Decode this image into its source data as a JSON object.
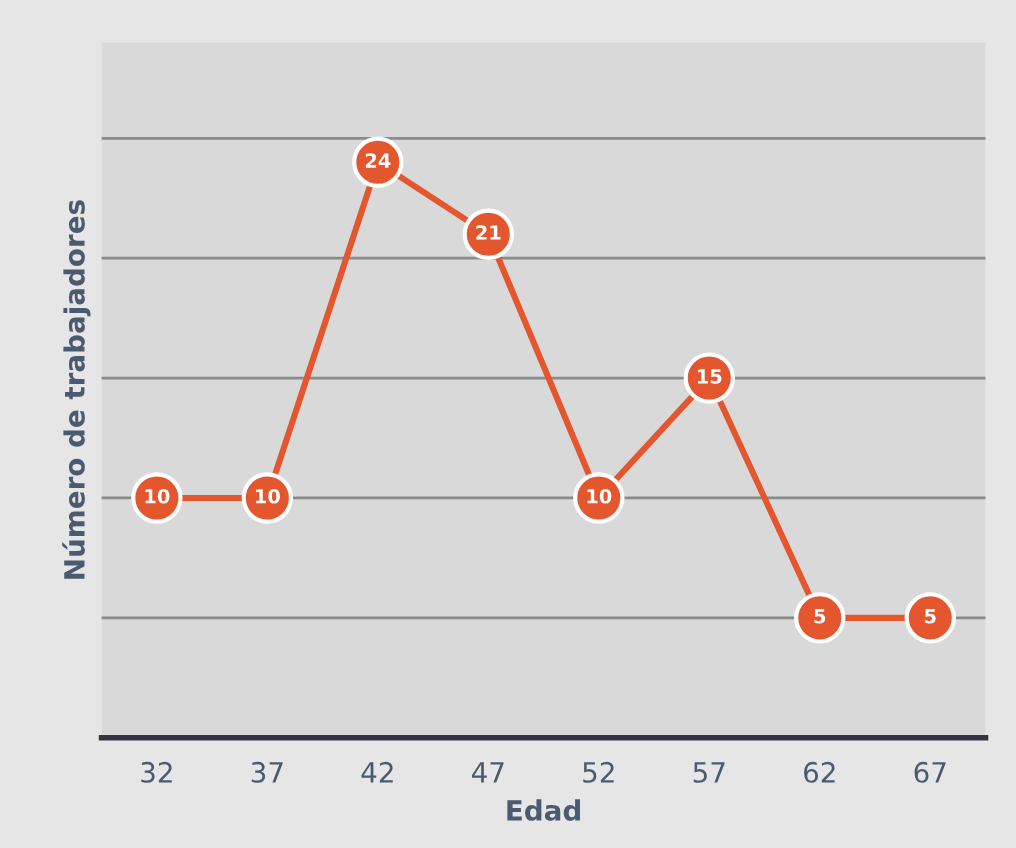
{
  "chart_data": {
    "type": "line",
    "xlabel": "Edad",
    "ylabel": "Número de trabajadores",
    "categories": [
      "32",
      "37",
      "42",
      "47",
      "52",
      "57",
      "62",
      "67"
    ],
    "series": [
      {
        "color": "#e4572e",
        "values": [
          10,
          10,
          24,
          21,
          10,
          15,
          5,
          5
        ]
      }
    ],
    "ylim": [
      0,
      29
    ],
    "yticks": [
      {
        "value": 5,
        "label": null
      },
      {
        "value": 10,
        "label": null
      },
      {
        "value": 15,
        "label": null
      },
      {
        "value": 20,
        "label": null
      },
      {
        "value": 25,
        "label": null
      }
    ],
    "tick_labels": "x",
    "grid": "y",
    "marker": "circle",
    "line_style": "solid",
    "data_labels": true,
    "legend": false
  }
}
